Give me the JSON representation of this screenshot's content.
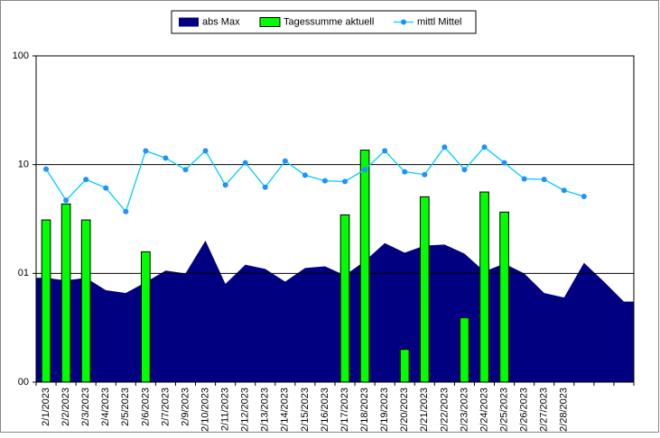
{
  "chart_data": {
    "type": "combo",
    "categories": [
      "2/1/2023",
      "2/2/2023",
      "2/3/2023",
      "2/4/2023",
      "2/5/2023",
      "2/6/2023",
      "2/7/2023",
      "2/9/2023",
      "2/10/2023",
      "2/11/2023",
      "2/12/2023",
      "2/13/2023",
      "2/14/2023",
      "2/15/2023",
      "2/16/2023",
      "2/17/2023",
      "2/18/2023",
      "2/19/2023",
      "2/20/2023",
      "2/21/2023",
      "2/22/2023",
      "2/23/2023",
      "2/24/2023",
      "2/25/2023",
      "2/26/2023",
      "2/27/2023",
      "2/28/2023",
      null,
      null,
      null
    ],
    "series": [
      {
        "name": "abs Max",
        "kind": "area",
        "color": "#000080",
        "values": [
          0.91,
          0.86,
          0.91,
          0.7,
          0.66,
          0.83,
          1.06,
          1.0,
          2.0,
          0.8,
          1.2,
          1.1,
          0.84,
          1.12,
          1.16,
          0.96,
          1.3,
          1.9,
          1.55,
          1.8,
          1.84,
          1.52,
          1.04,
          1.23,
          1.0,
          0.66,
          0.6,
          1.25,
          0.84,
          0.55
        ]
      },
      {
        "name": "Tagessumme aktuell",
        "kind": "bar",
        "color": "#00ff00",
        "values": [
          3.1,
          4.35,
          3.1,
          null,
          null,
          1.58,
          null,
          null,
          null,
          null,
          null,
          null,
          null,
          null,
          null,
          3.45,
          13.6,
          null,
          0.2,
          5.06,
          null,
          0.39,
          5.6,
          3.66,
          null,
          null,
          null,
          null,
          null,
          null
        ]
      },
      {
        "name": "mittl Mittel",
        "kind": "line",
        "color": "#00ccff",
        "marker_color": "#1e90ff",
        "values": [
          9.1,
          4.7,
          7.3,
          6.1,
          3.7,
          13.4,
          11.5,
          9.0,
          13.4,
          6.5,
          10.4,
          6.2,
          10.8,
          8.0,
          7.1,
          7.0,
          9.0,
          13.4,
          8.6,
          8.1,
          14.5,
          9.0,
          14.5,
          10.4,
          7.4,
          7.3,
          5.8,
          5.1,
          null,
          null
        ]
      }
    ],
    "ylim": [
      0.1,
      100
    ],
    "log_y": true,
    "yticks": [
      {
        "value": 0.1,
        "label": "00"
      },
      {
        "value": 1,
        "label": "01"
      },
      10,
      100
    ],
    "grid": true,
    "legend": "top"
  }
}
